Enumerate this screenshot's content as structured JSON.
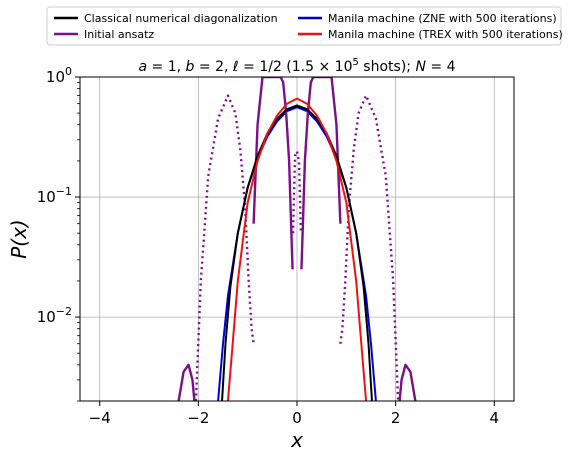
{
  "chart_data": {
    "type": "line",
    "title_parts": [
      {
        "text": "a",
        "italic": true
      },
      {
        "text": " = 1, ",
        "italic": false
      },
      {
        "text": "b",
        "italic": true
      },
      {
        "text": " = 2, ",
        "italic": false
      },
      {
        "text": "ℓ",
        "italic": true
      },
      {
        "text": " = 1/2 (1.5 × 10",
        "italic": false
      },
      {
        "text": "5",
        "italic": false,
        "sup": true
      },
      {
        "text": " shots); ",
        "italic": false
      },
      {
        "text": "N",
        "italic": true
      },
      {
        "text": " = 4",
        "italic": false
      }
    ],
    "xlabel": "x",
    "ylabel": "P(x)",
    "xlim": [
      -4.4,
      4.4
    ],
    "ylim": [
      0.002,
      1
    ],
    "yscale": "log",
    "xticks": [
      {
        "value": -4,
        "label": "−4"
      },
      {
        "value": -2,
        "label": "−2"
      },
      {
        "value": 0,
        "label": "0"
      },
      {
        "value": 2,
        "label": "2"
      },
      {
        "value": 4,
        "label": "4"
      }
    ],
    "yticks": [
      {
        "value": 0.01,
        "base": "10",
        "exp": "−2"
      },
      {
        "value": 0.1,
        "base": "10",
        "exp": "−1"
      },
      {
        "value": 1,
        "base": "10",
        "exp": "0"
      }
    ],
    "grid": true,
    "legend_position": "top (outside plot, two columns)",
    "series": [
      {
        "name": "Classical numerical diagonalization",
        "color": "#000000",
        "style": "solid",
        "x": [
          -1.52,
          -1.45,
          -1.35,
          -1.2,
          -1.0,
          -0.8,
          -0.6,
          -0.4,
          -0.2,
          0.0,
          0.2,
          0.4,
          0.6,
          0.8,
          1.0,
          1.2,
          1.35,
          1.45,
          1.52
        ],
        "y": [
          0.002,
          0.006,
          0.018,
          0.05,
          0.12,
          0.22,
          0.34,
          0.45,
          0.54,
          0.58,
          0.54,
          0.45,
          0.34,
          0.22,
          0.12,
          0.05,
          0.018,
          0.006,
          0.002
        ]
      },
      {
        "name": "Initial ansatz",
        "color": "#7b0f8a",
        "style": "mixed",
        "segments": [
          {
            "style": "solid",
            "x": [
              -2.4,
              -2.3,
              -2.2,
              -2.12,
              -2.08
            ],
            "y": [
              0.002,
              0.0035,
              0.004,
              0.003,
              0.002
            ]
          },
          {
            "style": "dotted",
            "x": [
              -2.05,
              -1.95,
              -1.8,
              -1.6,
              -1.4,
              -1.25,
              -1.15,
              -1.05,
              -0.98,
              -0.92,
              -0.88
            ],
            "y": [
              0.002,
              0.02,
              0.15,
              0.45,
              0.7,
              0.5,
              0.25,
              0.08,
              0.02,
              0.008,
              0.006
            ]
          },
          {
            "style": "solid",
            "x": [
              -0.88,
              -0.8,
              -0.7,
              -0.6,
              -0.5,
              -0.45,
              -0.4,
              -0.33,
              -0.28,
              -0.22,
              -0.16,
              -0.12,
              -0.09
            ],
            "y": [
              0.06,
              0.4,
              1.0,
              1.0,
              1.0,
              1.0,
              1.0,
              1.0,
              0.9,
              0.5,
              0.2,
              0.06,
              0.025
            ]
          },
          {
            "style": "dotted",
            "x": [
              -0.08,
              -0.04,
              0.0,
              0.04,
              0.08
            ],
            "y": [
              0.05,
              0.22,
              0.24,
              0.2,
              0.05
            ]
          },
          {
            "style": "solid",
            "x": [
              0.09,
              0.12,
              0.16,
              0.22,
              0.28,
              0.33,
              0.4,
              0.45,
              0.5,
              0.6,
              0.7,
              0.8,
              0.88
            ],
            "y": [
              0.025,
              0.06,
              0.2,
              0.5,
              0.9,
              1.0,
              1.0,
              1.0,
              1.0,
              1.0,
              1.0,
              0.4,
              0.06
            ]
          },
          {
            "style": "dotted",
            "x": [
              0.88,
              0.92,
              0.98,
              1.05,
              1.15,
              1.25,
              1.4,
              1.6,
              1.8,
              1.95,
              2.05
            ],
            "y": [
              0.006,
              0.008,
              0.02,
              0.08,
              0.25,
              0.5,
              0.7,
              0.45,
              0.15,
              0.02,
              0.002
            ]
          },
          {
            "style": "solid",
            "x": [
              2.08,
              2.12,
              2.2,
              2.3,
              2.4
            ],
            "y": [
              0.002,
              0.003,
              0.004,
              0.0035,
              0.002
            ]
          }
        ]
      },
      {
        "name": "Manila machine (ZNE with 500 iterations)",
        "color": "#0000dd",
        "style": "solid",
        "x": [
          -1.6,
          -1.5,
          -1.4,
          -1.2,
          -1.0,
          -0.8,
          -0.6,
          -0.4,
          -0.2,
          0.0,
          0.2,
          0.4,
          0.6,
          0.8,
          1.0,
          1.2,
          1.4,
          1.5,
          1.6
        ],
        "y": [
          0.002,
          0.006,
          0.015,
          0.05,
          0.12,
          0.21,
          0.32,
          0.43,
          0.52,
          0.56,
          0.52,
          0.43,
          0.32,
          0.21,
          0.12,
          0.05,
          0.015,
          0.006,
          0.002
        ]
      },
      {
        "name": "Manila machine (TREX with 500 iterations)",
        "color": "#ee1111",
        "style": "solid",
        "x": [
          -1.4,
          -1.32,
          -1.2,
          -1.0,
          -0.8,
          -0.6,
          -0.4,
          -0.2,
          0.0,
          0.2,
          0.4,
          0.6,
          0.8,
          1.0,
          1.2,
          1.32,
          1.4
        ],
        "y": [
          0.002,
          0.005,
          0.02,
          0.09,
          0.2,
          0.34,
          0.48,
          0.6,
          0.66,
          0.6,
          0.48,
          0.34,
          0.2,
          0.09,
          0.02,
          0.005,
          0.002
        ]
      }
    ]
  }
}
